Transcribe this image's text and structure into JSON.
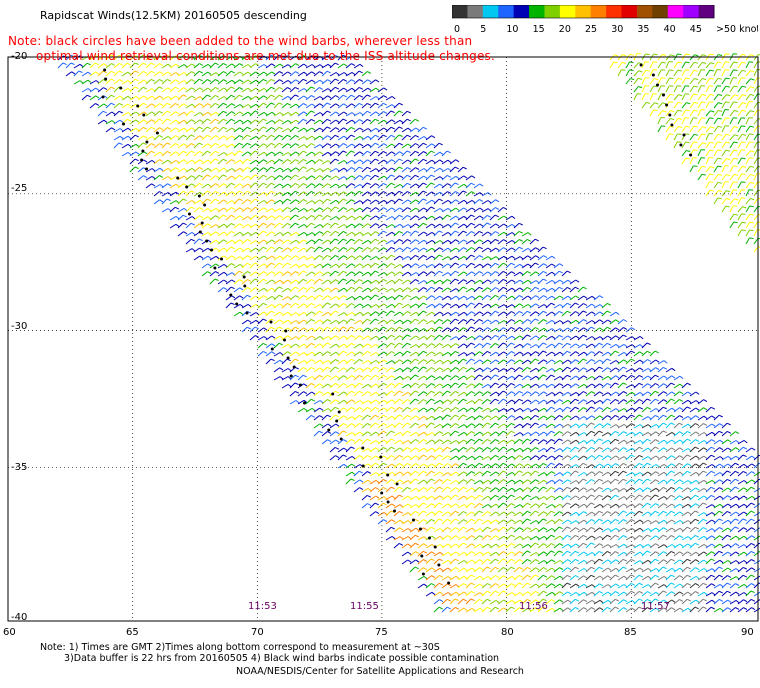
{
  "header": {
    "title": "Rapidscat Winds(12.5KM) 20160505 descending",
    "note_line1": "Note: black circles have been added to the wind barbs, wherever less than",
    "note_line2": "optimal wind retrieval conditions are met due to the ISS altitude changes."
  },
  "colorbar": {
    "labels": [
      "0",
      "5",
      "10",
      "15",
      "20",
      "25",
      "30",
      "35",
      "40",
      "45",
      ">50 knots"
    ],
    "colors": [
      "#333333",
      "#7a7a7a",
      "#00c8f0",
      "#1e64ff",
      "#0000b4",
      "#00b400",
      "#80d000",
      "#ffff00",
      "#ffc000",
      "#ff8000",
      "#ff3000",
      "#e00000",
      "#a05000",
      "#704000",
      "#ff00ff",
      "#a000ff",
      "#600080"
    ],
    "unit": "knots"
  },
  "axes": {
    "lat_labels": [
      "-20",
      "-25",
      "-30",
      "-35",
      "-40"
    ],
    "lon_labels": [
      "60",
      "65",
      "70",
      "75",
      "80",
      "85",
      "90"
    ],
    "lat_range": [
      -40,
      -20
    ],
    "lon_range": [
      60,
      90
    ]
  },
  "pass_times": [
    "11:53",
    "11:55",
    "11:56",
    "11:57"
  ],
  "footer": {
    "line1": "Note: 1) Times are GMT 2)Times along bottom correspond to measurement at ~30S",
    "line2": "3)Data buffer is 22 hrs from 20160505 4) Black wind barbs indicate possible contamination",
    "credit": "NOAA/NESDIS/Center for Satellite Applications and Research"
  }
}
